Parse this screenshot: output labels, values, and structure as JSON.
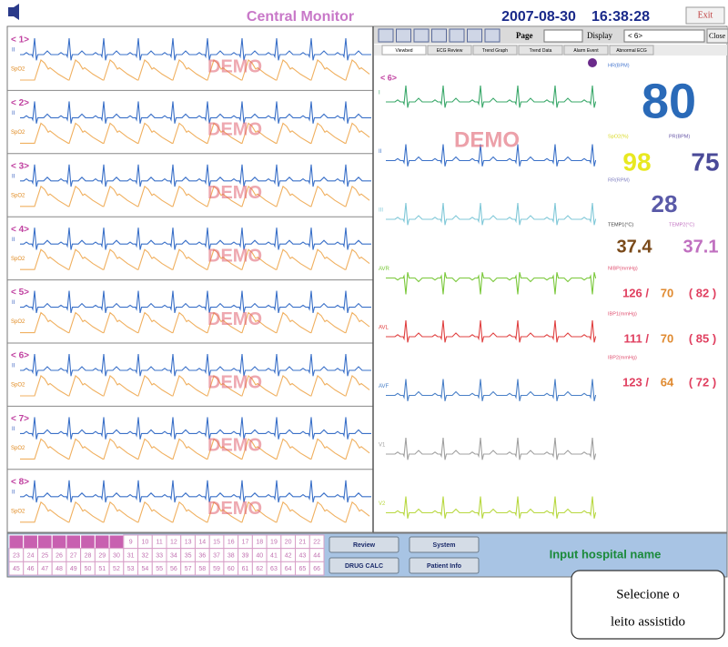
{
  "header": {
    "title": "Central Monitor",
    "date": "2007-08-30",
    "time": "16:38:28",
    "exit": "Exit"
  },
  "toolbar": {
    "page_label": "Page",
    "display_label": "Display",
    "display_value": "< 6>",
    "close": "Close"
  },
  "tabs": [
    "Viewbed",
    "ECG Review",
    "Trend Graph",
    "Trend Data",
    "Alarm Event",
    "Abnormal ECG"
  ],
  "watermark": "DEMO",
  "beds": [
    {
      "label": "< 1>",
      "ecg": "II",
      "pleth": "SpO2"
    },
    {
      "label": "< 2>",
      "ecg": "II",
      "pleth": "SpO2"
    },
    {
      "label": "< 3>",
      "ecg": "II",
      "pleth": "SpO2"
    },
    {
      "label": "< 4>",
      "ecg": "II",
      "pleth": "SpO2"
    },
    {
      "label": "< 5>",
      "ecg": "II",
      "pleth": "SpO2"
    },
    {
      "label": "< 6>",
      "ecg": "II",
      "pleth": "SpO2"
    },
    {
      "label": "< 7>",
      "ecg": "II",
      "pleth": "SpO2"
    },
    {
      "label": "< 8>",
      "ecg": "II",
      "pleth": "SpO2"
    }
  ],
  "detail": {
    "bed_label": "< 6>",
    "leads": [
      {
        "name": "I",
        "color": "#3aa86a"
      },
      {
        "name": "II",
        "color": "#3a70c8"
      },
      {
        "name": "III",
        "color": "#80c8d8"
      },
      {
        "name": "AVR",
        "color": "#7ac83a"
      },
      {
        "name": "AVL",
        "color": "#e04040"
      },
      {
        "name": "AVF",
        "color": "#4a80c8"
      },
      {
        "name": "V1",
        "color": "#a0a0a0"
      },
      {
        "name": "V2",
        "color": "#b8d840"
      }
    ],
    "vitals": {
      "hr": {
        "label": "HR(BPM)",
        "value": "80"
      },
      "spo2": {
        "label": "SpO2(%)",
        "value": "98"
      },
      "pr": {
        "label": "PR(BPM)",
        "value": "75"
      },
      "rr": {
        "label": "RR(RPM)",
        "value": "28"
      },
      "temp1": {
        "label": "TEMP1(°C)",
        "value": "37.4"
      },
      "temp2": {
        "label": "TEMP2(°C)",
        "value": "37.1"
      },
      "nibp": {
        "label": "NIBP(mmHg)",
        "sys": "126 /",
        "dia": "70",
        "mean": "( 82 )"
      },
      "ibp1": {
        "label": "IBP1(mmHg)",
        "sys": "111 /",
        "dia": "70",
        "mean": "( 85 )"
      },
      "ibp2": {
        "label": "IBP2(mmHg)",
        "sys": "123 /",
        "dia": "64",
        "mean": "( 72 )"
      }
    }
  },
  "bed_numbers": [
    9,
    10,
    11,
    12,
    13,
    14,
    15,
    16,
    17,
    18,
    19,
    20,
    21,
    22,
    23,
    24,
    25,
    26,
    27,
    28,
    29,
    30,
    31,
    32,
    33,
    34,
    35,
    36,
    37,
    38,
    39,
    40,
    41,
    42,
    43,
    44,
    45,
    46,
    47,
    48,
    49,
    50,
    51,
    52,
    53,
    54,
    55,
    56,
    57,
    58,
    59,
    60,
    61,
    62,
    63,
    64,
    65,
    66
  ],
  "buttons": [
    "Review",
    "System",
    "DRUG CALC",
    "Patient Info"
  ],
  "hospital": "Input hospital name",
  "callout": [
    "Selecione o",
    "leito assistido"
  ]
}
